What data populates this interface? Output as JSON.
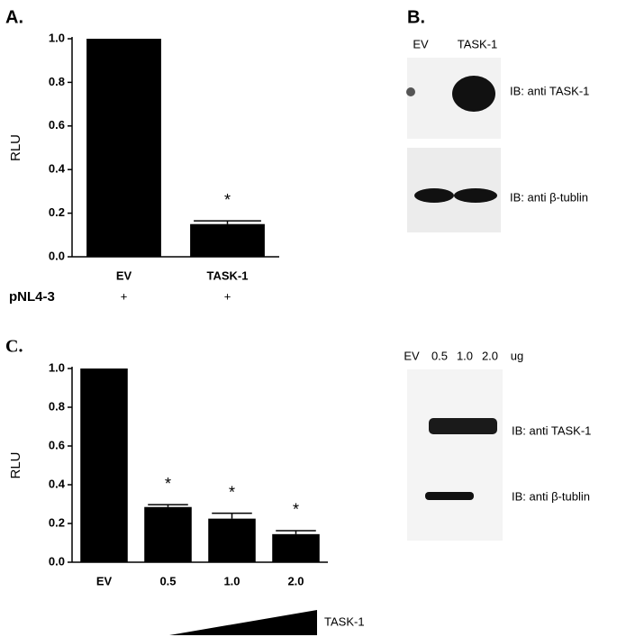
{
  "chart_data": [
    {
      "type": "bar",
      "panel_label": "A.",
      "ylabel": "RLU",
      "categories": [
        "EV",
        "TASK-1"
      ],
      "values": [
        1.0,
        0.15
      ],
      "errors": [
        null,
        0.015
      ],
      "annotations": [
        null,
        "*"
      ],
      "color": "#000000",
      "ylim": [
        0,
        1.0
      ],
      "yticks": [
        {
          "value": 0,
          "label": "0.0"
        },
        {
          "value": 0.2,
          "label": "0.2"
        },
        {
          "value": 0.4,
          "label": "0.4"
        },
        {
          "value": 0.6,
          "label": "0.6"
        },
        {
          "value": 0.8,
          "label": "0.8"
        },
        {
          "value": 1.0,
          "label": "1.0"
        }
      ],
      "treatment_row": {
        "label": "pNL4-3",
        "values": [
          "+",
          "+"
        ]
      }
    },
    {
      "type": "bar",
      "panel_label": "C.",
      "ylabel": "RLU",
      "categories": [
        "EV",
        "0.5",
        "1.0",
        "2.0"
      ],
      "values": [
        1.0,
        0.285,
        0.225,
        0.145
      ],
      "errors": [
        null,
        0.012,
        0.028,
        0.018
      ],
      "annotations": [
        null,
        "*",
        "*",
        "*"
      ],
      "color": "#000000",
      "ylim": [
        0,
        1.0
      ],
      "yticks": [
        {
          "value": 0,
          "label": "0.0"
        },
        {
          "value": 0.2,
          "label": "0.2"
        },
        {
          "value": 0.4,
          "label": "0.4"
        },
        {
          "value": 0.6,
          "label": "0.6"
        },
        {
          "value": 0.8,
          "label": "0.8"
        },
        {
          "value": 1.0,
          "label": "1.0"
        }
      ],
      "gradient_label": "TASK-1"
    }
  ],
  "blots": [
    {
      "panel_label": "B.",
      "lanes": [
        "EV",
        "TASK-1"
      ],
      "rows": [
        "IB: anti TASK-1",
        "IB: anti β-tublin"
      ]
    },
    {
      "lanes": [
        "EV",
        "0.5",
        "1.0",
        "2.0",
        "ug"
      ],
      "rows": [
        "IB: anti TASK-1",
        "IB: anti β-tublin"
      ]
    }
  ]
}
